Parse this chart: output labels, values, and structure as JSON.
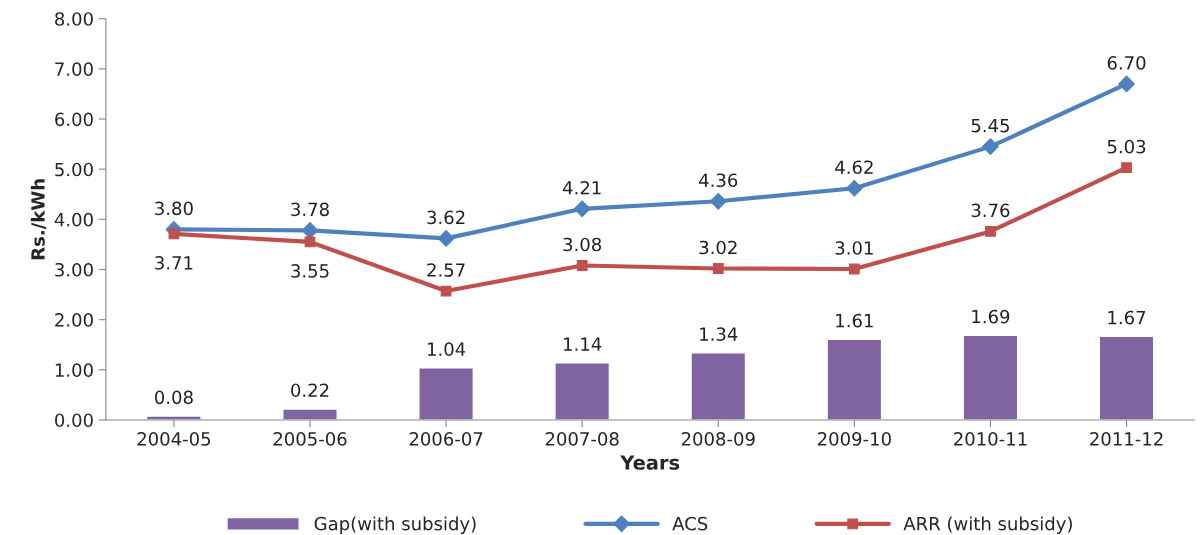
{
  "chart_data": {
    "type": "bar",
    "xlabel": "Years",
    "ylabel": "Rs./kWh",
    "categories": [
      "2004-05",
      "2005-06",
      "2006-07",
      "2007-08",
      "2008-09",
      "2009-10",
      "2010-11",
      "2011-12"
    ],
    "series": [
      {
        "name": "Gap(with subsidy)",
        "color": "#8064a2",
        "values": [
          0.08,
          0.22,
          1.04,
          1.14,
          1.34,
          1.61,
          1.69,
          1.67
        ],
        "value_labels": [
          "0.08",
          "0.22",
          "1.04",
          "1.14",
          "1.34",
          "1.61",
          "1.69",
          "1.67"
        ]
      },
      {
        "name": "ACS",
        "type": "line",
        "color": "#4f81bd",
        "marker": "diamond",
        "values": [
          3.8,
          3.78,
          3.62,
          4.21,
          4.36,
          4.62,
          5.45,
          6.7
        ],
        "value_labels": [
          "3.80",
          "3.78",
          "3.62",
          "4.21",
          "4.36",
          "4.62",
          "5.45",
          "6.70"
        ]
      },
      {
        "name": "ARR (with subsidy)",
        "type": "line",
        "color": "#c0504d",
        "marker": "square",
        "values": [
          3.71,
          3.55,
          2.57,
          3.08,
          3.02,
          3.01,
          3.76,
          5.03
        ],
        "value_labels": [
          "3.71",
          "3.55",
          "2.57",
          "3.08",
          "3.02",
          "3.01",
          "3.76",
          "5.03"
        ]
      }
    ],
    "ylim": [
      0,
      8
    ],
    "yticks": [
      {
        "value": 0,
        "label": "0.00"
      },
      {
        "value": 1,
        "label": "1.00"
      },
      {
        "value": 2,
        "label": "2.00"
      },
      {
        "value": 3,
        "label": "3.00"
      },
      {
        "value": 4,
        "label": "4.00"
      },
      {
        "value": 5,
        "label": "5.00"
      },
      {
        "value": 6,
        "label": "6.00"
      },
      {
        "value": 7,
        "label": "7.00"
      },
      {
        "value": 8,
        "label": "8.00"
      }
    ],
    "grid": false,
    "legend": "bottom"
  }
}
